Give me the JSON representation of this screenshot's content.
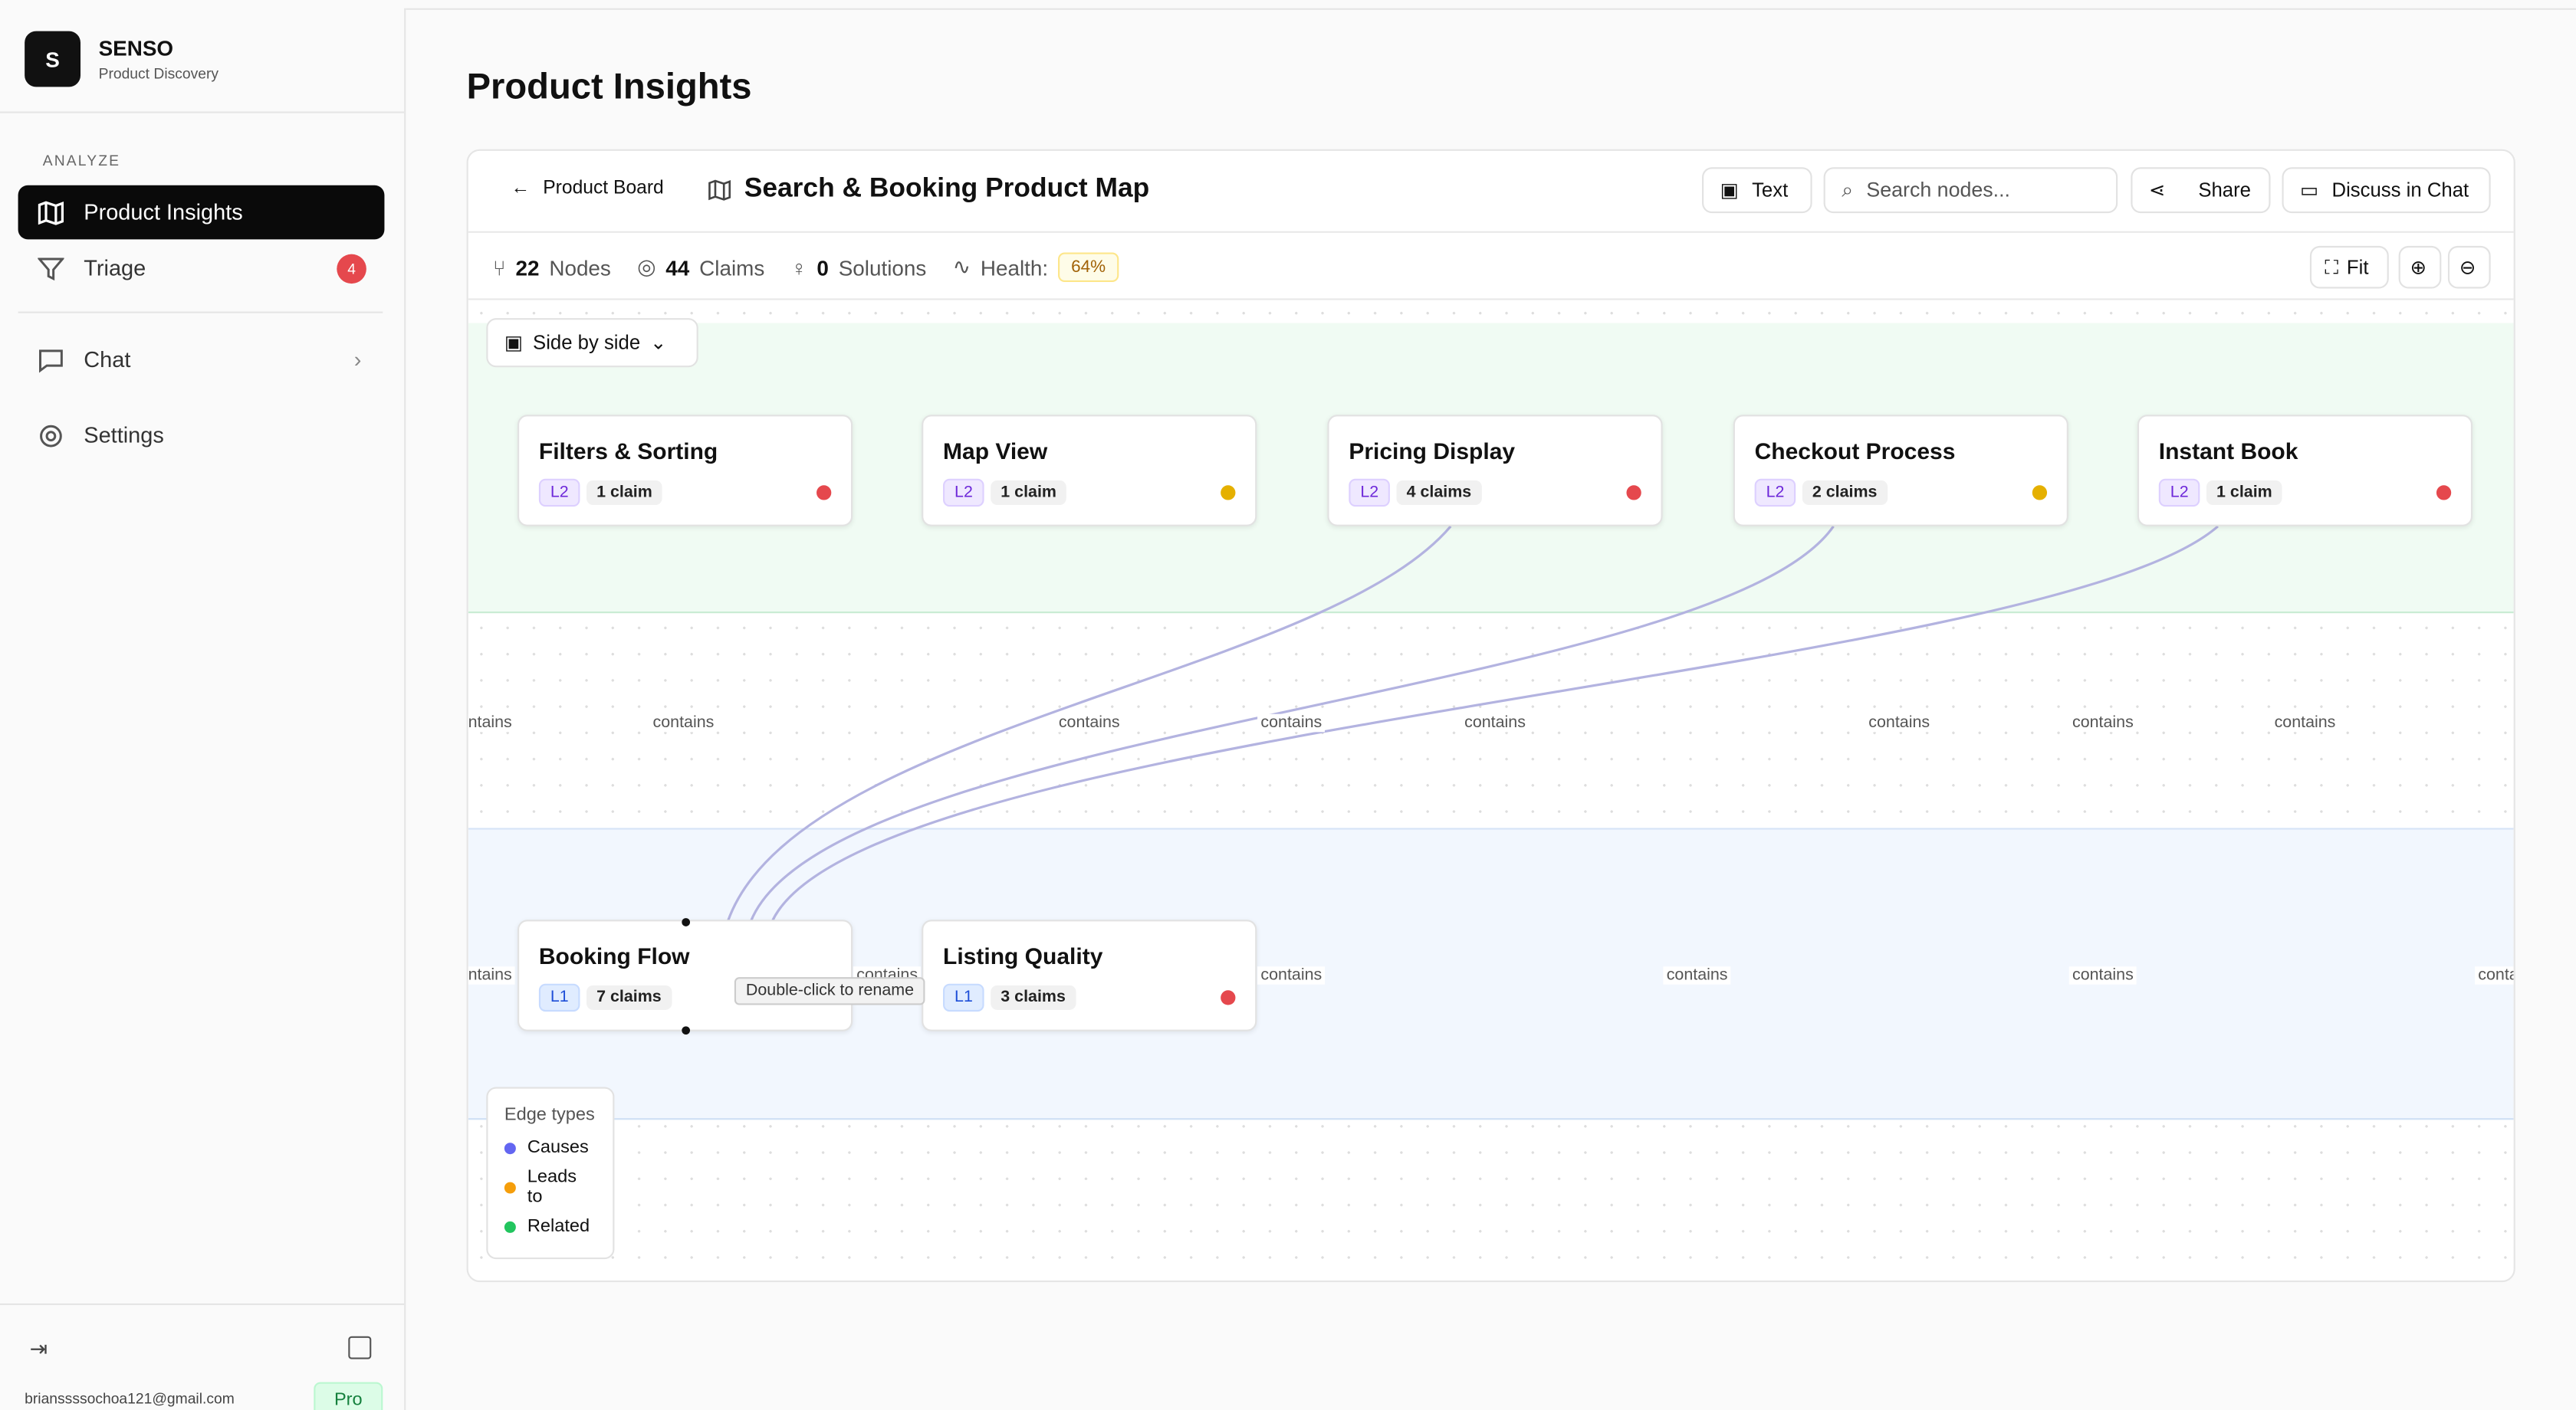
{
  "sidebar": {
    "brand": "SENSO",
    "subtitle": "Product Discovery",
    "section": "ANALYZE",
    "nav": [
      "Product Insights",
      "Triage",
      "Chat",
      "Settings"
    ],
    "triage_badge": "4",
    "email": "brianssssochoa121@gmail.com",
    "plan": "Pro"
  },
  "page_title": "Product Insights",
  "toolbar": {
    "back": "Product Board",
    "map_title": "Search & Booking Product Map",
    "text_btn": "Text",
    "search_placeholder": "Search nodes...",
    "share": "Share",
    "discuss": "Discuss in Chat"
  },
  "stats": {
    "nodes": "22",
    "nodes_label": "Nodes",
    "claims": "44",
    "claims_label": "Claims",
    "solutions": "0",
    "solutions_label": "Solutions",
    "health_label": "Health:",
    "health": "64%",
    "fit": "Fit"
  },
  "view_mode": "Side by side",
  "nodes": [
    {
      "label": "Filters & Sorting",
      "level": "L2",
      "claims": "1 claim",
      "status": "#e5484d"
    },
    {
      "label": "Map View",
      "level": "L2",
      "claims": "1 claim",
      "status": "#e5b000"
    },
    {
      "label": "Pricing Display",
      "level": "L2",
      "claims": "4 claims",
      "status": "#e5484d"
    },
    {
      "label": "Checkout Process",
      "level": "L2",
      "claims": "2 claims",
      "status": "#e5b000"
    },
    {
      "label": "Instant Book",
      "level": "L2",
      "claims": "1 claim",
      "status": "#e5484d"
    },
    {
      "label": "Booking Flow",
      "level": "L1",
      "claims": "7 claims"
    },
    {
      "label": "Listing Quality",
      "level": "L1",
      "claims": "3 claims",
      "status": "#e5484d"
    }
  ],
  "edge_labels": [
    "contains",
    "contains",
    "contains",
    "contains",
    "contains",
    "contains",
    "contains",
    "contains",
    "contains",
    "contains",
    "contains",
    "contains",
    "contains",
    "contains"
  ],
  "tooltip": "Double-click to rename",
  "legend": {
    "title": "Edge types",
    "items": [
      {
        "name": "Causes",
        "color": "#6366f1"
      },
      {
        "name": "Leads to",
        "color": "#f59e0b"
      },
      {
        "name": "Related",
        "color": "#22c55e"
      }
    ]
  }
}
